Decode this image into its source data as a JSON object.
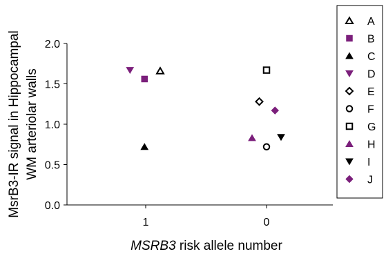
{
  "chart_data": {
    "type": "scatter",
    "title": "",
    "xlabel_italic": "MSRB3",
    "xlabel_rest": " risk allele number",
    "ylabel_line1": "MsrB3-IR signal in Hippocampal",
    "ylabel_line2": "WM arteriolar walls",
    "categories": [
      "1",
      "0"
    ],
    "ylim": [
      0,
      2
    ],
    "yticks": [
      "0.0",
      "0.5",
      "1.0",
      "1.5",
      "2.0"
    ],
    "grid": false,
    "legend_position": "right",
    "series": [
      {
        "name": "A",
        "marker": "triangle-open",
        "color": "#000000",
        "category": "1",
        "x_offset": 0.12,
        "y": 1.66
      },
      {
        "name": "B",
        "marker": "square-filled",
        "color": "#7b1f7b",
        "category": "1",
        "x_offset": -0.01,
        "y": 1.56
      },
      {
        "name": "C",
        "marker": "triangle-filled",
        "color": "#000000",
        "category": "1",
        "x_offset": -0.01,
        "y": 0.72
      },
      {
        "name": "D",
        "marker": "triangle-down",
        "color": "#7b1f7b",
        "category": "1",
        "x_offset": -0.13,
        "y": 1.67
      },
      {
        "name": "E",
        "marker": "diamond-open",
        "color": "#000000",
        "category": "0",
        "x_offset": -0.06,
        "y": 1.28
      },
      {
        "name": "F",
        "marker": "circle-open",
        "color": "#000000",
        "category": "0",
        "x_offset": 0.0,
        "y": 0.72
      },
      {
        "name": "G",
        "marker": "square-open",
        "color": "#000000",
        "category": "0",
        "x_offset": 0.0,
        "y": 1.67
      },
      {
        "name": "H",
        "marker": "triangle-filled",
        "color": "#7b1f7b",
        "category": "0",
        "x_offset": -0.12,
        "y": 0.83
      },
      {
        "name": "I",
        "marker": "triangle-down",
        "color": "#000000",
        "category": "0",
        "x_offset": 0.12,
        "y": 0.84
      },
      {
        "name": "J",
        "marker": "diamond-filled",
        "color": "#7b1f7b",
        "category": "0",
        "x_offset": 0.07,
        "y": 1.17
      }
    ]
  }
}
